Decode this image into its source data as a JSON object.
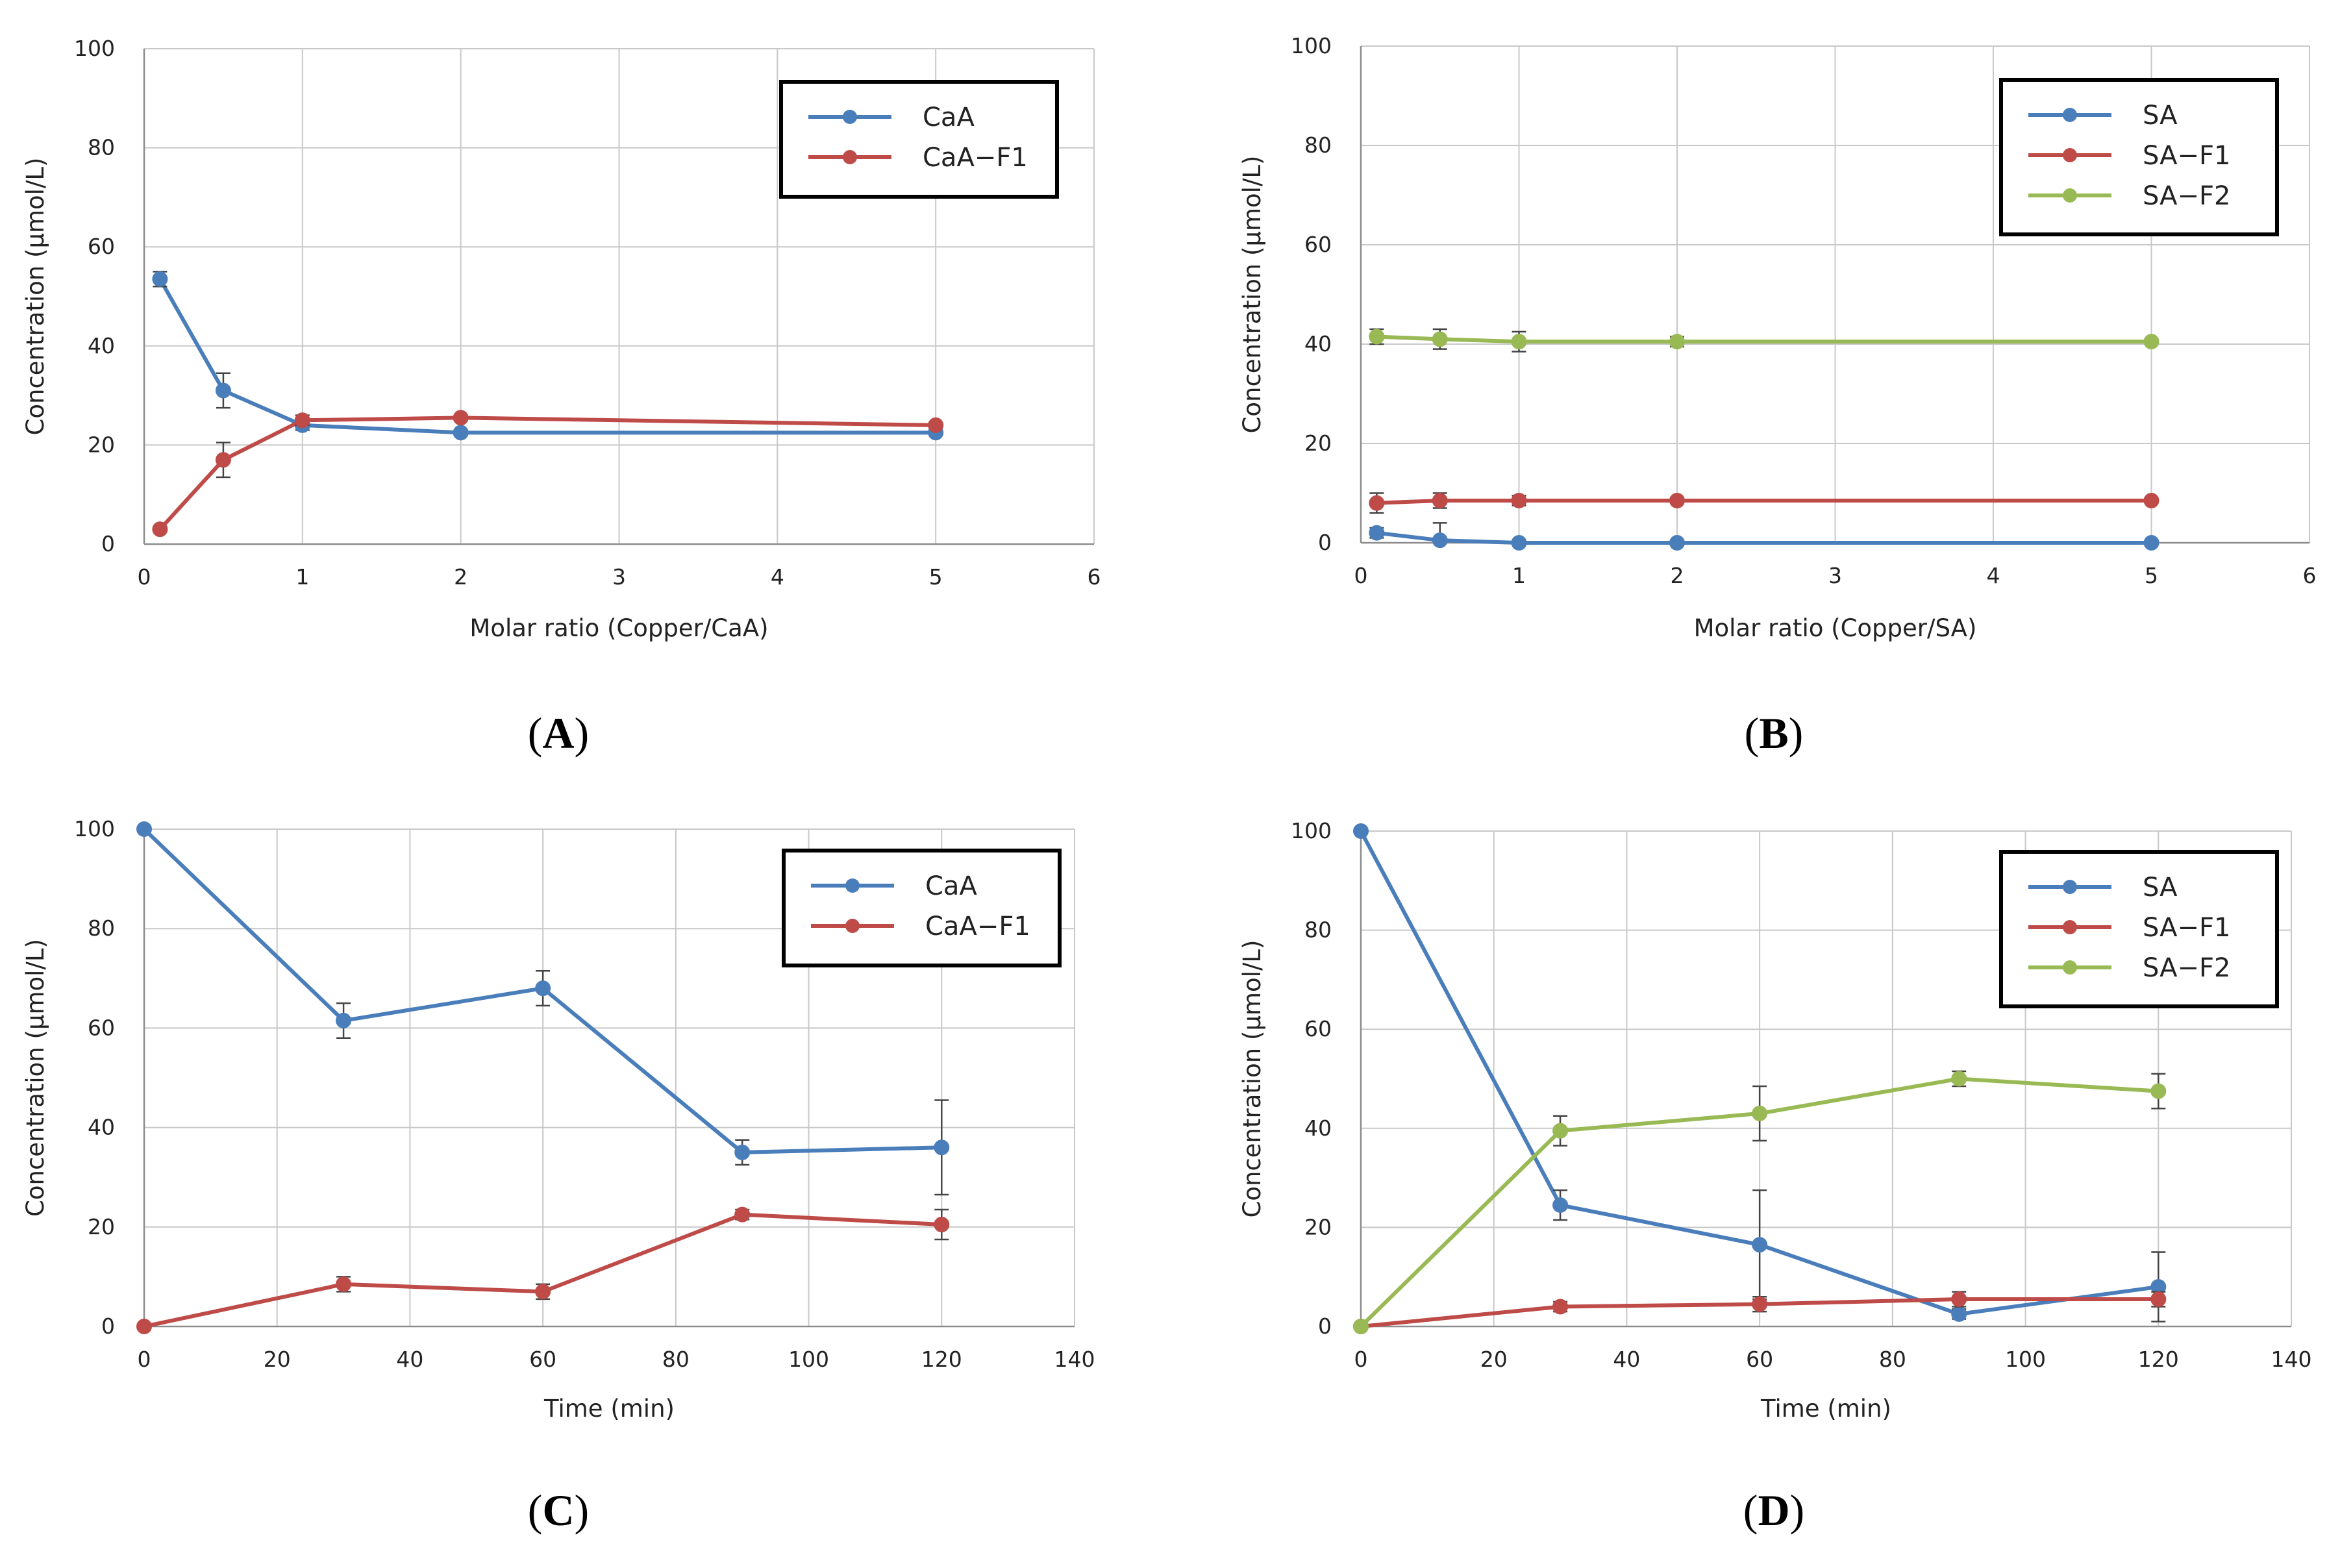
{
  "colors": {
    "blue": "#4a7ebb",
    "red": "#be4b48",
    "green": "#98b954",
    "grid": "#c8c8c8",
    "axis": "#8c8c8c"
  },
  "chart_data": [
    {
      "type": "line",
      "panel_label": "A",
      "xlabel": "Molar ratio (Copper/CaA)",
      "ylabel": "Concentration (μmol/L)",
      "xlim": [
        0,
        6
      ],
      "ylim": [
        0,
        100
      ],
      "xticks": [
        0,
        1,
        2,
        3,
        4,
        5,
        6
      ],
      "yticks": [
        0,
        20,
        40,
        60,
        80,
        100
      ],
      "x_tick_labels": [
        "0",
        "1",
        "2",
        "3",
        "4",
        "5",
        "6"
      ],
      "y_tick_labels": [
        "0",
        "20",
        "40",
        "60",
        "80",
        "100"
      ],
      "legend_position": "top-right",
      "series": [
        {
          "name": "CaA",
          "color": "#4a7ebb",
          "x": [
            0.1,
            0.5,
            1,
            2,
            5
          ],
          "y": [
            53.5,
            31,
            24,
            22.5,
            22.5
          ],
          "err": [
            1.5,
            3.5,
            1,
            0.5,
            0.5
          ]
        },
        {
          "name": "CaA−F1",
          "color": "#be4b48",
          "x": [
            0.1,
            0.5,
            1,
            2,
            5
          ],
          "y": [
            3,
            17,
            25,
            25.5,
            24
          ],
          "err": [
            0.5,
            3.5,
            1,
            0.5,
            0.5
          ]
        }
      ]
    },
    {
      "type": "line",
      "panel_label": "B",
      "xlabel": "Molar ratio (Copper/SA)",
      "ylabel": "Concentration (μmol/L)",
      "xlim": [
        0,
        6
      ],
      "ylim": [
        0,
        100
      ],
      "xticks": [
        0,
        1,
        2,
        3,
        4,
        5,
        6
      ],
      "yticks": [
        0,
        20,
        40,
        60,
        80,
        100
      ],
      "x_tick_labels": [
        "0",
        "1",
        "2",
        "3",
        "4",
        "5",
        "6"
      ],
      "y_tick_labels": [
        "0",
        "20",
        "40",
        "60",
        "80",
        "100"
      ],
      "legend_position": "top-right",
      "series": [
        {
          "name": "SA",
          "color": "#4a7ebb",
          "x": [
            0.1,
            0.5,
            1,
            2,
            5
          ],
          "y": [
            2,
            0.5,
            0,
            0,
            0
          ],
          "err": [
            1,
            3.5,
            0,
            0,
            0
          ]
        },
        {
          "name": "SA−F1",
          "color": "#be4b48",
          "x": [
            0.1,
            0.5,
            1,
            2,
            5
          ],
          "y": [
            8,
            8.5,
            8.5,
            8.5,
            8.5
          ],
          "err": [
            2,
            1.5,
            1,
            0.5,
            0.5
          ]
        },
        {
          "name": "SA−F2",
          "color": "#98b954",
          "x": [
            0.1,
            0.5,
            1,
            2,
            5
          ],
          "y": [
            41.5,
            41,
            40.5,
            40.5,
            40.5
          ],
          "err": [
            1.5,
            2,
            2,
            1,
            0.5
          ]
        }
      ]
    },
    {
      "type": "line",
      "panel_label": "C",
      "xlabel": "Time (min)",
      "ylabel": "Concentration (μmol/L)",
      "xlim": [
        0,
        140
      ],
      "ylim": [
        0,
        100
      ],
      "xticks": [
        0,
        20,
        40,
        60,
        80,
        100,
        120,
        140
      ],
      "yticks": [
        0,
        20,
        40,
        60,
        80,
        100
      ],
      "x_tick_labels": [
        "0",
        "20",
        "40",
        "60",
        "80",
        "100",
        "120",
        "140"
      ],
      "y_tick_labels": [
        "0",
        "20",
        "40",
        "60",
        "80",
        "100"
      ],
      "legend_position": "top-right",
      "series": [
        {
          "name": "CaA",
          "color": "#4a7ebb",
          "x": [
            0,
            30,
            60,
            90,
            120
          ],
          "y": [
            100,
            61.5,
            68,
            35,
            36
          ],
          "err": [
            0,
            3.5,
            3.5,
            2.5,
            9.5
          ]
        },
        {
          "name": "CaA−F1",
          "color": "#be4b48",
          "x": [
            0,
            30,
            60,
            90,
            120
          ],
          "y": [
            0,
            8.5,
            7,
            22.5,
            20.5
          ],
          "err": [
            0,
            1.5,
            1.5,
            1,
            3
          ]
        }
      ]
    },
    {
      "type": "line",
      "panel_label": "D",
      "xlabel": "Time (min)",
      "ylabel": "Concentration (μmol/L)",
      "xlim": [
        0,
        140
      ],
      "ylim": [
        0,
        100
      ],
      "xticks": [
        0,
        20,
        40,
        60,
        80,
        100,
        120,
        140
      ],
      "yticks": [
        0,
        20,
        40,
        60,
        80,
        100
      ],
      "x_tick_labels": [
        "0",
        "20",
        "40",
        "60",
        "80",
        "100",
        "120",
        "140"
      ],
      "y_tick_labels": [
        "0",
        "20",
        "40",
        "60",
        "80",
        "100"
      ],
      "legend_position": "top-right",
      "series": [
        {
          "name": "SA",
          "color": "#4a7ebb",
          "x": [
            0,
            30,
            60,
            90,
            120
          ],
          "y": [
            100,
            24.5,
            16.5,
            2.5,
            8
          ],
          "err": [
            0,
            3,
            11,
            1,
            7
          ]
        },
        {
          "name": "SA−F1",
          "color": "#be4b48",
          "x": [
            0,
            30,
            60,
            90,
            120
          ],
          "y": [
            0,
            4,
            4.5,
            5.5,
            5.5
          ],
          "err": [
            0,
            1,
            1.5,
            1.5,
            1.5
          ]
        },
        {
          "name": "SA−F2",
          "color": "#98b954",
          "x": [
            0,
            30,
            60,
            90,
            120
          ],
          "y": [
            0,
            39.5,
            43,
            50,
            47.5
          ],
          "err": [
            0,
            3,
            5.5,
            1.5,
            3.5
          ]
        }
      ]
    }
  ]
}
